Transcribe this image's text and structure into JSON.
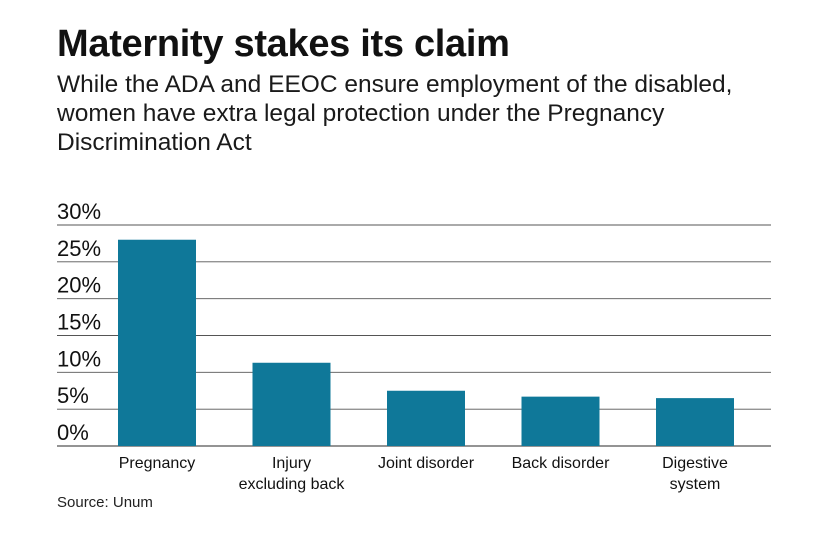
{
  "title": "Maternity stakes its claim",
  "subtitle": "While the ADA and EEOC ensure employment of the disabled, women have extra legal protection under the Pregnancy Discrimination Act",
  "source": "Source: Unum",
  "colors": {
    "bar": "#0f7899",
    "grid": "#555555",
    "text": "#111111"
  },
  "chart_data": {
    "type": "bar",
    "categories": [
      "Pregnancy",
      "Injury excluding back",
      "Joint disorder",
      "Back disorder",
      "Digestive system"
    ],
    "category_lines": [
      [
        "Pregnancy"
      ],
      [
        "Injury",
        "excluding back"
      ],
      [
        "Joint disorder"
      ],
      [
        "Back disorder"
      ],
      [
        "Digestive",
        "system"
      ]
    ],
    "values": [
      28,
      11.3,
      7.5,
      6.7,
      6.5
    ],
    "ylim": [
      0,
      30
    ],
    "yticks": [
      0,
      5,
      10,
      15,
      20,
      25,
      30
    ],
    "ytick_labels": [
      "0%",
      "5%",
      "10%",
      "15%",
      "20%",
      "25%",
      "30%"
    ],
    "grid": true,
    "xlabel": "",
    "ylabel": ""
  }
}
